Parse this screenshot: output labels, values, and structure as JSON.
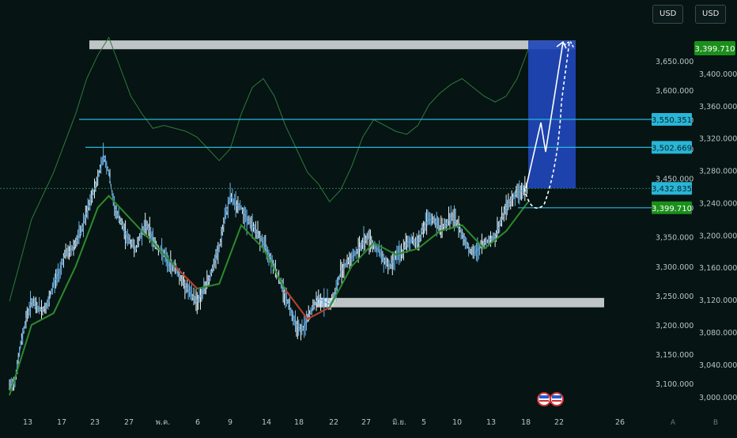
{
  "chart_data": {
    "type": "candlestick",
    "title": "",
    "left_axis": {
      "ticks": [
        "3,650.000",
        "3,600.000",
        "3,550.000",
        "3,500.000",
        "3,450.000",
        "3,400.000",
        "3,350.000",
        "3,300.000",
        "3,250.000",
        "3,200.000",
        "3,150.000",
        "3,100.000"
      ],
      "range": [
        3080,
        3700
      ],
      "currency": "USD"
    },
    "right_axis": {
      "ticks": [
        "3,400.000",
        "3,360.000",
        "3,320.000",
        "3,280.000",
        "3,240.000",
        "3,200.000",
        "3,160.000",
        "3,120.000",
        "3,080.000",
        "3,040.000",
        "3,000.000"
      ],
      "range": [
        2990,
        3440
      ],
      "currency": "USD"
    },
    "x_ticks": [
      "13",
      "17",
      "23",
      "27",
      "พ.ค.",
      "6",
      "9",
      "14",
      "18",
      "22",
      "27",
      "มิ.ย.",
      "5",
      "10",
      "13",
      "18",
      "22",
      "26"
    ],
    "price_labels": {
      "top_right": "3,399.710",
      "level_1": "3,550.351",
      "level_2": "3,502.669",
      "current": "3,432.835",
      "support": "3,399.710"
    },
    "levels": [
      3550.351,
      3502.669,
      3432.835,
      3399.71
    ],
    "zones": [
      {
        "name": "upper-resistance-zone",
        "from": 3670,
        "to": 3685
      },
      {
        "name": "demand-zone",
        "from": 3230,
        "to": 3246
      },
      {
        "name": "target-box",
        "from": 3432.835,
        "to": 3685
      }
    ],
    "price_path": [
      [
        0,
        3095
      ],
      [
        1,
        3105
      ],
      [
        2,
        3165
      ],
      [
        3,
        3210
      ],
      [
        4,
        3240
      ],
      [
        5,
        3230
      ],
      [
        6,
        3225
      ],
      [
        7,
        3235
      ],
      [
        8,
        3270
      ],
      [
        9,
        3290
      ],
      [
        10,
        3320
      ],
      [
        11,
        3325
      ],
      [
        12,
        3340
      ],
      [
        13,
        3360
      ],
      [
        14,
        3390
      ],
      [
        15,
        3420
      ],
      [
        16,
        3450
      ],
      [
        17,
        3490
      ],
      [
        18,
        3460
      ],
      [
        19,
        3400
      ],
      [
        20,
        3380
      ],
      [
        21,
        3355
      ],
      [
        22,
        3340
      ],
      [
        23,
        3330
      ],
      [
        24,
        3360
      ],
      [
        25,
        3370
      ],
      [
        26,
        3345
      ],
      [
        27,
        3330
      ],
      [
        28,
        3320
      ],
      [
        29,
        3300
      ],
      [
        30,
        3300
      ],
      [
        31,
        3280
      ],
      [
        32,
        3265
      ],
      [
        33,
        3250
      ],
      [
        34,
        3240
      ],
      [
        35,
        3255
      ],
      [
        36,
        3275
      ],
      [
        37,
        3300
      ],
      [
        38,
        3330
      ],
      [
        39,
        3380
      ],
      [
        40,
        3420
      ],
      [
        41,
        3405
      ],
      [
        42,
        3400
      ],
      [
        43,
        3380
      ],
      [
        44,
        3370
      ],
      [
        45,
        3355
      ],
      [
        46,
        3340
      ],
      [
        47,
        3320
      ],
      [
        48,
        3300
      ],
      [
        49,
        3275
      ],
      [
        50,
        3250
      ],
      [
        51,
        3225
      ],
      [
        52,
        3200
      ],
      [
        53,
        3190
      ],
      [
        54,
        3210
      ],
      [
        55,
        3230
      ],
      [
        56,
        3245
      ],
      [
        57,
        3240
      ],
      [
        58,
        3235
      ],
      [
        59,
        3250
      ],
      [
        60,
        3290
      ],
      [
        61,
        3305
      ],
      [
        62,
        3315
      ],
      [
        63,
        3325
      ],
      [
        64,
        3340
      ],
      [
        65,
        3350
      ],
      [
        66,
        3335
      ],
      [
        67,
        3325
      ],
      [
        68,
        3310
      ],
      [
        69,
        3300
      ],
      [
        70,
        3320
      ],
      [
        71,
        3320
      ],
      [
        72,
        3340
      ],
      [
        73,
        3345
      ],
      [
        74,
        3340
      ],
      [
        75,
        3365
      ],
      [
        76,
        3380
      ],
      [
        77,
        3378
      ],
      [
        78,
        3365
      ],
      [
        79,
        3370
      ],
      [
        80,
        3385
      ],
      [
        81,
        3375
      ],
      [
        82,
        3355
      ],
      [
        83,
        3335
      ],
      [
        84,
        3320
      ],
      [
        85,
        3330
      ],
      [
        86,
        3340
      ],
      [
        87,
        3345
      ],
      [
        88,
        3350
      ],
      [
        89,
        3375
      ],
      [
        90,
        3400
      ],
      [
        91,
        3415
      ],
      [
        92,
        3425
      ],
      [
        93,
        3430
      ],
      [
        94,
        3432
      ]
    ],
    "ma_path": [
      [
        0,
        3080
      ],
      [
        4,
        3200
      ],
      [
        8,
        3220
      ],
      [
        12,
        3300
      ],
      [
        16,
        3400
      ],
      [
        18,
        3420
      ],
      [
        22,
        3380
      ],
      [
        26,
        3340
      ],
      [
        30,
        3300
      ],
      [
        34,
        3262
      ],
      [
        38,
        3270
      ],
      [
        42,
        3370
      ],
      [
        46,
        3330
      ],
      [
        50,
        3260
      ],
      [
        54,
        3210
      ],
      [
        58,
        3230
      ],
      [
        62,
        3300
      ],
      [
        66,
        3340
      ],
      [
        70,
        3320
      ],
      [
        74,
        3330
      ],
      [
        78,
        3360
      ],
      [
        82,
        3370
      ],
      [
        86,
        3330
      ],
      [
        90,
        3360
      ],
      [
        94,
        3410
      ]
    ],
    "red_segments": [
      [
        30,
        36
      ],
      [
        48,
        58
      ]
    ],
    "band_path": [
      [
        0,
        3240
      ],
      [
        4,
        3380
      ],
      [
        8,
        3460
      ],
      [
        12,
        3560
      ],
      [
        14,
        3620
      ],
      [
        16,
        3660
      ],
      [
        18,
        3690
      ],
      [
        20,
        3640
      ],
      [
        22,
        3590
      ],
      [
        24,
        3560
      ],
      [
        26,
        3535
      ],
      [
        28,
        3540
      ],
      [
        30,
        3535
      ],
      [
        32,
        3530
      ],
      [
        34,
        3520
      ],
      [
        36,
        3500
      ],
      [
        38,
        3480
      ],
      [
        40,
        3500
      ],
      [
        42,
        3560
      ],
      [
        44,
        3605
      ],
      [
        46,
        3620
      ],
      [
        48,
        3590
      ],
      [
        50,
        3540
      ],
      [
        52,
        3500
      ],
      [
        54,
        3460
      ],
      [
        56,
        3440
      ],
      [
        58,
        3410
      ],
      [
        60,
        3430
      ],
      [
        62,
        3470
      ],
      [
        64,
        3520
      ],
      [
        66,
        3550
      ],
      [
        68,
        3540
      ],
      [
        70,
        3530
      ],
      [
        72,
        3525
      ],
      [
        74,
        3540
      ],
      [
        76,
        3575
      ],
      [
        78,
        3595
      ],
      [
        80,
        3610
      ],
      [
        82,
        3620
      ],
      [
        84,
        3605
      ],
      [
        86,
        3590
      ],
      [
        88,
        3580
      ],
      [
        90,
        3590
      ],
      [
        92,
        3620
      ],
      [
        94,
        3670
      ]
    ]
  }
}
